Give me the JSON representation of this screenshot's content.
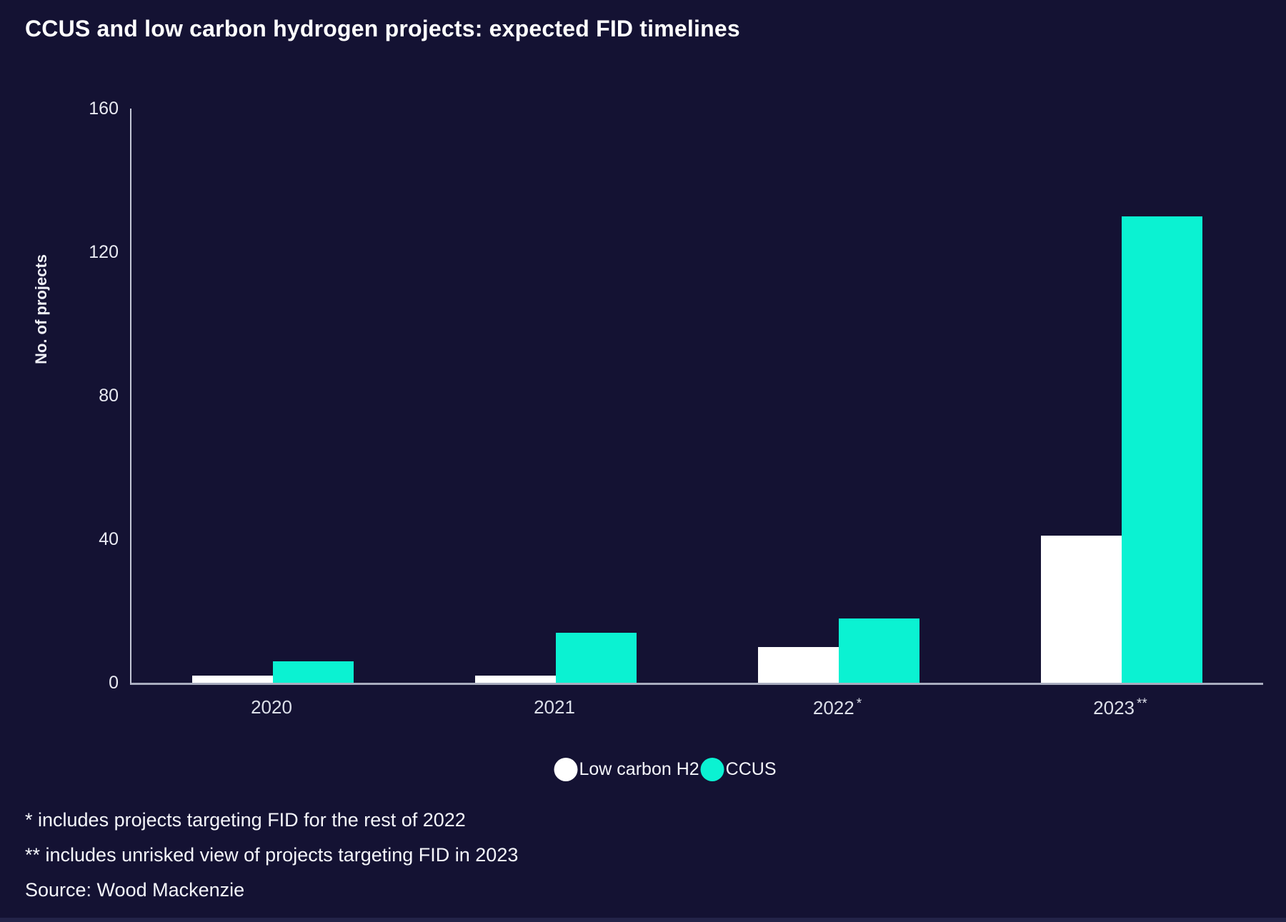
{
  "title": "CCUS and low carbon hydrogen projects: expected FID timelines",
  "chart_data": {
    "type": "bar",
    "title": "CCUS and low carbon hydrogen projects: expected FID timelines",
    "xlabel": "",
    "ylabel": "No. of projects",
    "ylim": [
      0,
      160
    ],
    "yticks": [
      0,
      40,
      80,
      120,
      160
    ],
    "grid": false,
    "legend_position": "bottom-center",
    "categories": [
      "2020",
      "2021",
      "2022*",
      "2023**"
    ],
    "category_parts": [
      {
        "year": "2020",
        "mark": ""
      },
      {
        "year": "2021",
        "mark": ""
      },
      {
        "year": "2022",
        "mark": "*"
      },
      {
        "year": "2023",
        "mark": "**"
      }
    ],
    "series": [
      {
        "name": "Low carbon H2",
        "color": "#ffffff",
        "values": [
          2,
          2,
          10,
          41
        ]
      },
      {
        "name": "CCUS",
        "color": "#0bf2d2",
        "values": [
          6,
          14,
          18,
          130
        ]
      }
    ]
  },
  "footnotes": [
    "* includes projects targeting FID for the rest of 2022",
    "** includes unrisked view of projects targeting FID in 2023",
    "Source: Wood Mackenzie"
  ],
  "colors": {
    "background": "#141233",
    "bar_low_carbon_h2": "#ffffff",
    "bar_ccus": "#0bf2d2",
    "axis_line": "#c3c6d6",
    "baseline": "#a9adbf",
    "text": "#ffffff"
  }
}
